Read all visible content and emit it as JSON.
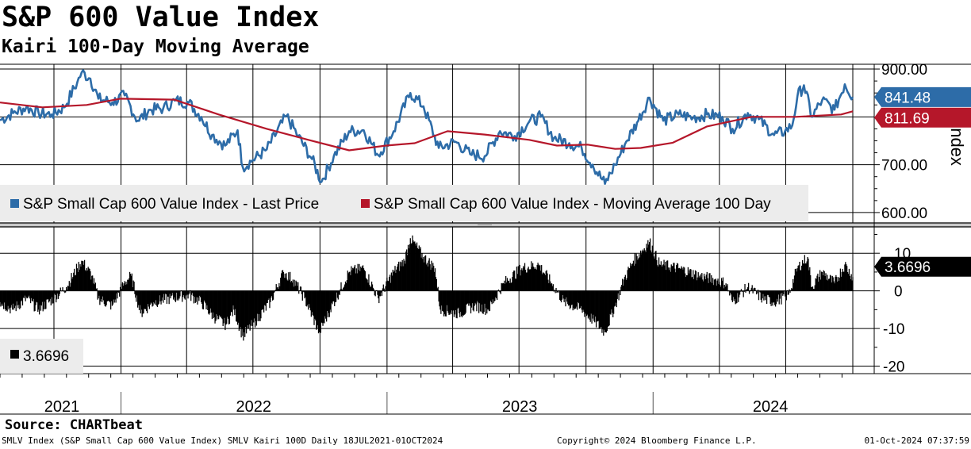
{
  "title": "S&P 600 Value Index",
  "subtitle": "Kairi 100-Day Moving Average",
  "source": "Source: CHARTbeat",
  "footer": {
    "left": "SMLV Index (S&P Small Cap 600 Value Index) SMLV Kairi 100D  Daily 18JUL2021-01OCT2024",
    "center": "Copyright© 2024 Bloomberg Finance L.P.",
    "right": "01-Oct-2024 07:37:59"
  },
  "colors": {
    "price": "#2d6ca8",
    "ma": "#b5172a",
    "kairi": "#000000",
    "grid": "#000000"
  },
  "chart_data": [
    {
      "type": "line",
      "ylabel": "Index",
      "ylim": [
        575,
        910
      ],
      "yticks": [
        "900.00",
        "700.00",
        "600.00"
      ],
      "x_labels": [
        "2021",
        "2022",
        "2023",
        "2024"
      ],
      "grid": true,
      "legend_position": "bottom-left",
      "last_value_tags": [
        {
          "label": "841.48",
          "value": 841.48,
          "color": "#2d6ca8"
        },
        {
          "label": "811.69",
          "value": 811.69,
          "color": "#b5172a"
        }
      ],
      "series": [
        {
          "name": "S&P Small Cap 600 Value Index - Last Price",
          "points": [
            [
              "2021-07-19",
              793
            ],
            [
              "2021-08-06",
              808
            ],
            [
              "2021-08-24",
              820
            ],
            [
              "2021-09-10",
              808
            ],
            [
              "2021-09-28",
              805
            ],
            [
              "2021-10-15",
              820
            ],
            [
              "2021-11-02",
              872
            ],
            [
              "2021-11-08",
              893
            ],
            [
              "2021-11-20",
              880
            ],
            [
              "2021-12-01",
              838
            ],
            [
              "2021-12-20",
              830
            ],
            [
              "2022-01-06",
              845
            ],
            [
              "2022-01-24",
              792
            ],
            [
              "2022-02-10",
              815
            ],
            [
              "2022-02-28",
              818
            ],
            [
              "2022-03-16",
              834
            ],
            [
              "2022-04-04",
              830
            ],
            [
              "2022-04-21",
              800
            ],
            [
              "2022-05-06",
              762
            ],
            [
              "2022-05-24",
              740
            ],
            [
              "2022-06-10",
              772
            ],
            [
              "2022-06-17",
              695
            ],
            [
              "2022-07-01",
              710
            ],
            [
              "2022-07-20",
              732
            ],
            [
              "2022-08-16",
              802
            ],
            [
              "2022-09-01",
              760
            ],
            [
              "2022-09-20",
              712
            ],
            [
              "2022-10-03",
              664
            ],
            [
              "2022-10-20",
              718
            ],
            [
              "2022-11-10",
              770
            ],
            [
              "2022-11-30",
              772
            ],
            [
              "2022-12-20",
              720
            ],
            [
              "2023-01-10",
              770
            ],
            [
              "2023-02-02",
              850
            ],
            [
              "2023-02-20",
              822
            ],
            [
              "2023-03-13",
              735
            ],
            [
              "2023-04-05",
              748
            ],
            [
              "2023-04-25",
              722
            ],
            [
              "2023-05-15",
              718
            ],
            [
              "2023-06-05",
              770
            ],
            [
              "2023-06-25",
              760
            ],
            [
              "2023-07-15",
              790
            ],
            [
              "2023-07-31",
              800
            ],
            [
              "2023-08-18",
              756
            ],
            [
              "2023-09-08",
              745
            ],
            [
              "2023-09-25",
              735
            ],
            [
              "2023-10-10",
              700
            ],
            [
              "2023-10-27",
              660
            ],
            [
              "2023-11-10",
              700
            ],
            [
              "2023-11-25",
              748
            ],
            [
              "2023-12-10",
              788
            ],
            [
              "2023-12-27",
              840
            ],
            [
              "2024-01-15",
              792
            ],
            [
              "2024-02-05",
              805
            ],
            [
              "2024-02-25",
              798
            ],
            [
              "2024-03-15",
              805
            ],
            [
              "2024-04-05",
              800
            ],
            [
              "2024-04-19",
              775
            ],
            [
              "2024-05-10",
              808
            ],
            [
              "2024-05-25",
              795
            ],
            [
              "2024-06-15",
              762
            ],
            [
              "2024-06-30",
              770
            ],
            [
              "2024-07-10",
              782
            ],
            [
              "2024-07-17",
              843
            ],
            [
              "2024-07-26",
              866
            ],
            [
              "2024-08-06",
              800
            ],
            [
              "2024-08-20",
              835
            ],
            [
              "2024-09-06",
              815
            ],
            [
              "2024-09-20",
              868
            ],
            [
              "2024-10-01",
              841.48
            ]
          ]
        },
        {
          "name": "S&P Small Cap 600 Value Index - Moving Average 100 Day",
          "points": [
            [
              "2021-07-19",
              830
            ],
            [
              "2021-09-15",
              820
            ],
            [
              "2021-11-15",
              825
            ],
            [
              "2021-12-31",
              838
            ],
            [
              "2022-03-15",
              836
            ],
            [
              "2022-05-15",
              805
            ],
            [
              "2022-07-20",
              775
            ],
            [
              "2022-09-15",
              752
            ],
            [
              "2022-11-10",
              730
            ],
            [
              "2022-12-31",
              740
            ],
            [
              "2023-02-08",
              745
            ],
            [
              "2023-03-25",
              770
            ],
            [
              "2023-05-15",
              763
            ],
            [
              "2023-07-15",
              752
            ],
            [
              "2023-08-22",
              740
            ],
            [
              "2023-10-03",
              742
            ],
            [
              "2023-11-10",
              733
            ],
            [
              "2023-12-15",
              735
            ],
            [
              "2024-01-28",
              746
            ],
            [
              "2024-03-15",
              780
            ],
            [
              "2024-05-15",
              800
            ],
            [
              "2024-07-15",
              800
            ],
            [
              "2024-09-15",
              805
            ],
            [
              "2024-10-01",
              811.69
            ]
          ]
        }
      ]
    },
    {
      "type": "bar",
      "ylim": [
        -22,
        17
      ],
      "yticks": [
        "10",
        "0",
        "-10",
        "-20"
      ],
      "x_labels": [
        "2021",
        "2022",
        "2023",
        "2024"
      ],
      "grid": true,
      "legend_position": "bottom-left",
      "legend_label": "3.6696",
      "last_value_tag": {
        "label": "3.6696",
        "value": 3.6696,
        "color": "#000000"
      },
      "series": [
        {
          "name": "SMLV Kairi 100D",
          "points": [
            [
              "2021-07-19",
              -3
            ],
            [
              "2021-08-05",
              -5
            ],
            [
              "2021-08-25",
              -2
            ],
            [
              "2021-09-10",
              -5
            ],
            [
              "2021-10-01",
              -2
            ],
            [
              "2021-10-18",
              1
            ],
            [
              "2021-11-02",
              6
            ],
            [
              "2021-11-08",
              8
            ],
            [
              "2021-11-22",
              4
            ],
            [
              "2021-12-01",
              -2
            ],
            [
              "2021-12-20",
              -4
            ],
            [
              "2022-01-05",
              2
            ],
            [
              "2022-01-15",
              4
            ],
            [
              "2022-01-28",
              -6
            ],
            [
              "2022-02-15",
              -3
            ],
            [
              "2022-03-10",
              -2
            ],
            [
              "2022-04-04",
              -1
            ],
            [
              "2022-04-21",
              -3
            ],
            [
              "2022-05-09",
              -7
            ],
            [
              "2022-05-25",
              -9
            ],
            [
              "2022-06-05",
              -5
            ],
            [
              "2022-06-17",
              -12
            ],
            [
              "2022-07-05",
              -8
            ],
            [
              "2022-07-25",
              -3
            ],
            [
              "2022-08-12",
              5
            ],
            [
              "2022-08-25",
              3
            ],
            [
              "2022-09-10",
              -2
            ],
            [
              "2022-09-30",
              -11
            ],
            [
              "2022-10-15",
              -5
            ],
            [
              "2022-11-10",
              5
            ],
            [
              "2022-11-30",
              6
            ],
            [
              "2022-12-20",
              -2
            ],
            [
              "2023-01-10",
              5
            ],
            [
              "2023-01-25",
              8
            ],
            [
              "2023-02-02",
              14
            ],
            [
              "2023-02-20",
              9
            ],
            [
              "2023-03-08",
              6
            ],
            [
              "2023-03-15",
              -5
            ],
            [
              "2023-04-10",
              -6
            ],
            [
              "2023-05-01",
              -4
            ],
            [
              "2023-05-20",
              -5
            ],
            [
              "2023-06-10",
              2
            ],
            [
              "2023-07-05",
              6
            ],
            [
              "2023-07-28",
              7
            ],
            [
              "2023-08-15",
              2
            ],
            [
              "2023-09-01",
              -3
            ],
            [
              "2023-09-25",
              -5
            ],
            [
              "2023-10-12",
              -8
            ],
            [
              "2023-10-27",
              -11
            ],
            [
              "2023-11-10",
              -4
            ],
            [
              "2023-11-22",
              3
            ],
            [
              "2023-12-05",
              8
            ],
            [
              "2023-12-27",
              13
            ],
            [
              "2024-01-10",
              7
            ],
            [
              "2024-02-05",
              6
            ],
            [
              "2024-03-05",
              4
            ],
            [
              "2024-03-25",
              3
            ],
            [
              "2024-04-10",
              2
            ],
            [
              "2024-04-19",
              -3
            ],
            [
              "2024-05-10",
              1
            ],
            [
              "2024-05-30",
              -2
            ],
            [
              "2024-06-15",
              -3
            ],
            [
              "2024-07-05",
              -1
            ],
            [
              "2024-07-17",
              6
            ],
            [
              "2024-07-31",
              9
            ],
            [
              "2024-08-06",
              1
            ],
            [
              "2024-08-20",
              5
            ],
            [
              "2024-09-06",
              2
            ],
            [
              "2024-09-20",
              7
            ],
            [
              "2024-10-01",
              3.67
            ]
          ]
        }
      ]
    }
  ]
}
